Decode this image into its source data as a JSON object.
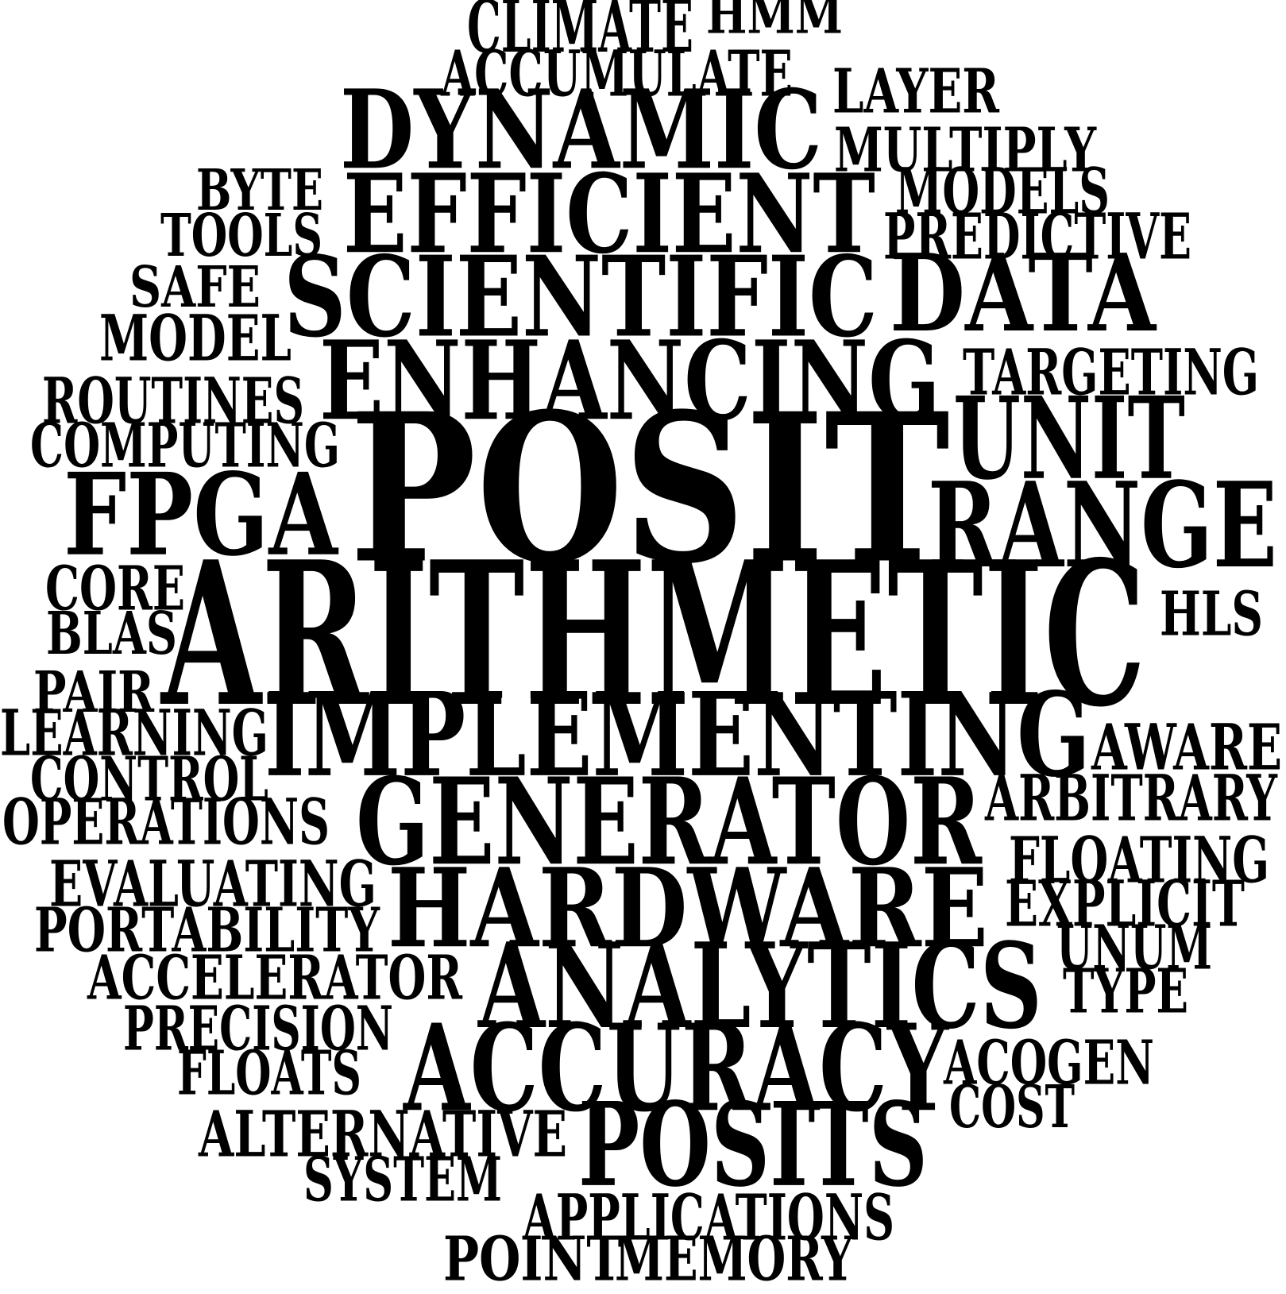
{
  "words": [
    {
      "text": "CLIMATE",
      "weight": 2
    },
    {
      "text": "HMM",
      "weight": 2
    },
    {
      "text": "ACCUMULATE",
      "weight": 2
    },
    {
      "text": "LAYER",
      "weight": 2
    },
    {
      "text": "DYNAMIC",
      "weight": 4
    },
    {
      "text": "MULTIPLY",
      "weight": 2
    },
    {
      "text": "BYTE",
      "weight": 2
    },
    {
      "text": "EFFICIENT",
      "weight": 4
    },
    {
      "text": "MODELS",
      "weight": 2
    },
    {
      "text": "TOOLS",
      "weight": 2
    },
    {
      "text": "PREDICTIVE",
      "weight": 2
    },
    {
      "text": "SAFE",
      "weight": 2
    },
    {
      "text": "SCIENTIFIC",
      "weight": 4
    },
    {
      "text": "DATA",
      "weight": 4
    },
    {
      "text": "MODEL",
      "weight": 2
    },
    {
      "text": "ENHANCING",
      "weight": 4
    },
    {
      "text": "TARGETING",
      "weight": 2
    },
    {
      "text": "ROUTINES",
      "weight": 2
    },
    {
      "text": "COMPUTING",
      "weight": 2
    },
    {
      "text": "POSIT",
      "weight": 6
    },
    {
      "text": "UNIT",
      "weight": 4
    },
    {
      "text": "FPGA",
      "weight": 4
    },
    {
      "text": "RANGE",
      "weight": 4
    },
    {
      "text": "CORE",
      "weight": 2
    },
    {
      "text": "ARITHMETIC",
      "weight": 5
    },
    {
      "text": "HLS",
      "weight": 2
    },
    {
      "text": "BLAS",
      "weight": 2
    },
    {
      "text": "PAIR",
      "weight": 2
    },
    {
      "text": "IMPLEMENTING",
      "weight": 4
    },
    {
      "text": "LEARNING",
      "weight": 2
    },
    {
      "text": "AWARE",
      "weight": 2
    },
    {
      "text": "CONTROL",
      "weight": 2
    },
    {
      "text": "GENERATOR",
      "weight": 4
    },
    {
      "text": "ARBITRARY",
      "weight": 2
    },
    {
      "text": "OPERATIONS",
      "weight": 2
    },
    {
      "text": "FLOATING",
      "weight": 2
    },
    {
      "text": "EVALUATING",
      "weight": 2
    },
    {
      "text": "HARDWARE",
      "weight": 4
    },
    {
      "text": "EXPLICIT",
      "weight": 2
    },
    {
      "text": "PORTABILITY",
      "weight": 2
    },
    {
      "text": "UNUM",
      "weight": 2
    },
    {
      "text": "ACCELERATOR",
      "weight": 2
    },
    {
      "text": "ANALYTICS",
      "weight": 4
    },
    {
      "text": "TYPE",
      "weight": 2
    },
    {
      "text": "PRECISION",
      "weight": 2
    },
    {
      "text": "ACCURACY",
      "weight": 4
    },
    {
      "text": "ACOGEN",
      "weight": 2
    },
    {
      "text": "FLOATS",
      "weight": 2
    },
    {
      "text": "COST",
      "weight": 2
    },
    {
      "text": "ALTERNATIVE",
      "weight": 2
    },
    {
      "text": "POSITS",
      "weight": 4
    },
    {
      "text": "SYSTEM",
      "weight": 2
    },
    {
      "text": "APPLICATIONS",
      "weight": 2
    },
    {
      "text": "POINT",
      "weight": 2
    },
    {
      "text": "MEMORY",
      "weight": 2
    }
  ]
}
